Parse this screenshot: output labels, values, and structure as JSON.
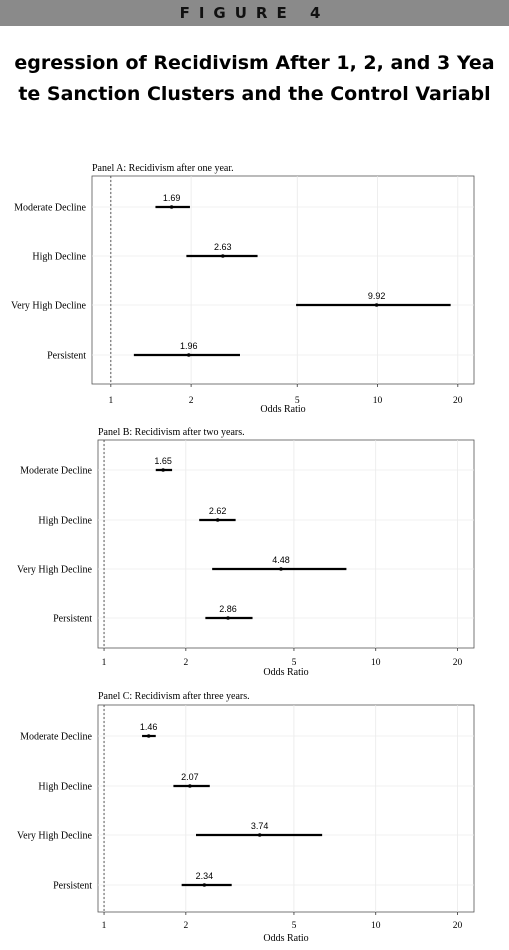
{
  "banner": "FIGURE 4",
  "title_line1": "egression of Recidivism After 1, 2, and 3 Yea",
  "title_line2": "te Sanction Clusters and the Control Variabl",
  "chart_data": [
    {
      "type": "forest",
      "title": "Panel A: Recidivism after one year.",
      "xlabel": "Odds Ratio",
      "xscale": "log",
      "xticks": [
        1,
        2,
        5,
        10,
        20
      ],
      "xlim": [
        0.85,
        23
      ],
      "reference_line": 1,
      "categories": [
        "Moderate Decline",
        "High Decline",
        "Very High Decline",
        "Persistent"
      ],
      "category_labels": [
        "Moderate Decline",
        "High Decline",
        "Very High Decline",
        "Persistent"
      ],
      "values": [
        1.69,
        2.63,
        9.92,
        1.96
      ],
      "value_labels": [
        "1.69",
        "2.63",
        "9.92",
        "1.96"
      ],
      "ci_low": [
        1.47,
        1.92,
        4.95,
        1.22
      ],
      "ci_high": [
        1.98,
        3.55,
        18.8,
        3.05
      ]
    },
    {
      "type": "forest",
      "title": "Panel B: Recidivism after two years.",
      "xlabel": "Odds Ratio",
      "xscale": "log",
      "xticks": [
        1,
        2,
        5,
        10,
        20
      ],
      "xlim": [
        0.95,
        23
      ],
      "reference_line": 1,
      "categories": [
        "Moderate Decline",
        "High Decline",
        "Very High Decline",
        "Persistent"
      ],
      "category_labels": [
        "Moderate Decline",
        "High Decline",
        "Very High Decline",
        "Persistent"
      ],
      "values": [
        1.65,
        2.62,
        4.48,
        2.86
      ],
      "value_labels": [
        "1.65",
        "2.62",
        "4.48",
        "2.86"
      ],
      "ci_low": [
        1.55,
        2.24,
        2.5,
        2.36
      ],
      "ci_high": [
        1.78,
        3.05,
        7.8,
        3.52
      ]
    },
    {
      "type": "forest",
      "title": "Panel C: Recidivism after three years.",
      "xlabel": "Odds Ratio",
      "xscale": "log",
      "xticks": [
        1,
        2,
        5,
        10,
        20
      ],
      "xlim": [
        0.95,
        23
      ],
      "reference_line": 1,
      "categories": [
        "Moderate Decline",
        "High Decline",
        "Very High Decline",
        "Persistent"
      ],
      "category_labels": [
        "Moderate Decline",
        "High Decline",
        "Very High Decline",
        "Persistent"
      ],
      "values": [
        1.46,
        2.07,
        3.74,
        2.34
      ],
      "value_labels": [
        "1.46",
        "2.07",
        "3.74",
        "2.34"
      ],
      "ci_low": [
        1.38,
        1.8,
        2.18,
        1.93
      ],
      "ci_high": [
        1.55,
        2.45,
        6.35,
        2.95
      ]
    }
  ]
}
